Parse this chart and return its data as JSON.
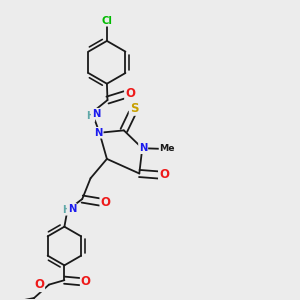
{
  "bg_color": "#ececec",
  "bond_color": "#1a1a1a",
  "bond_width": 1.3,
  "dbo": 0.012,
  "atom_colors": {
    "C": "#1a1a1a",
    "H": "#5fa8a8",
    "N": "#1a1aee",
    "O": "#ee1a1a",
    "S": "#c8a000",
    "Cl": "#00bb00"
  },
  "fs": 8.5,
  "sfs": 7.2
}
